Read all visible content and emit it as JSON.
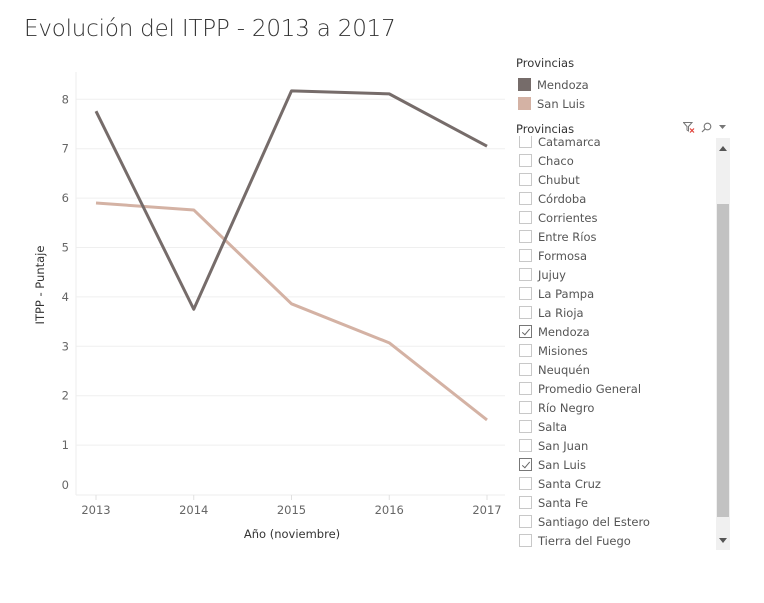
{
  "title": "Evolución del ITPP - 2013 a 2017",
  "chart_data": {
    "type": "line",
    "title": "Evolución del ITPP - 2013 a 2017",
    "xlabel": "Año (noviembre)",
    "ylabel": "ITPP - Puntaje",
    "x": [
      "2013",
      "2014",
      "2015",
      "2016",
      "2017"
    ],
    "ylim": [
      0,
      8.6
    ],
    "yticks": [
      0,
      1,
      2,
      3,
      4,
      5,
      6,
      7,
      8
    ],
    "grid": true,
    "legend_position": "right",
    "series": [
      {
        "name": "Mendoza",
        "color": "#766c6a",
        "values": [
          7.76,
          3.75,
          8.17,
          8.11,
          7.05
        ]
      },
      {
        "name": "San Luis",
        "color": "#d4b2a4",
        "values": [
          5.9,
          5.76,
          3.86,
          3.07,
          1.51
        ]
      }
    ]
  },
  "legend": {
    "title": "Provincias",
    "items": [
      {
        "label": "Mendoza",
        "color": "#766c6a"
      },
      {
        "label": "San Luis",
        "color": "#d4b2a4"
      }
    ]
  },
  "filter": {
    "title": "Provincias",
    "icons": [
      "clear-filter-icon",
      "search-icon",
      "dropdown-icon"
    ],
    "items": [
      {
        "label": "Catamarca",
        "checked": false
      },
      {
        "label": "Chaco",
        "checked": false
      },
      {
        "label": "Chubut",
        "checked": false
      },
      {
        "label": "Córdoba",
        "checked": false
      },
      {
        "label": "Corrientes",
        "checked": false
      },
      {
        "label": "Entre Ríos",
        "checked": false
      },
      {
        "label": "Formosa",
        "checked": false
      },
      {
        "label": "Jujuy",
        "checked": false
      },
      {
        "label": "La Pampa",
        "checked": false
      },
      {
        "label": "La Rioja",
        "checked": false
      },
      {
        "label": "Mendoza",
        "checked": true
      },
      {
        "label": "Misiones",
        "checked": false
      },
      {
        "label": "Neuquén",
        "checked": false
      },
      {
        "label": "Promedio General",
        "checked": false
      },
      {
        "label": "Río Negro",
        "checked": false
      },
      {
        "label": "Salta",
        "checked": false
      },
      {
        "label": "San Juan",
        "checked": false
      },
      {
        "label": "San Luis",
        "checked": true
      },
      {
        "label": "Santa Cruz",
        "checked": false
      },
      {
        "label": "Santa Fe",
        "checked": false
      },
      {
        "label": "Santiago del Estero",
        "checked": false
      },
      {
        "label": "Tierra del Fuego",
        "checked": false
      }
    ]
  }
}
